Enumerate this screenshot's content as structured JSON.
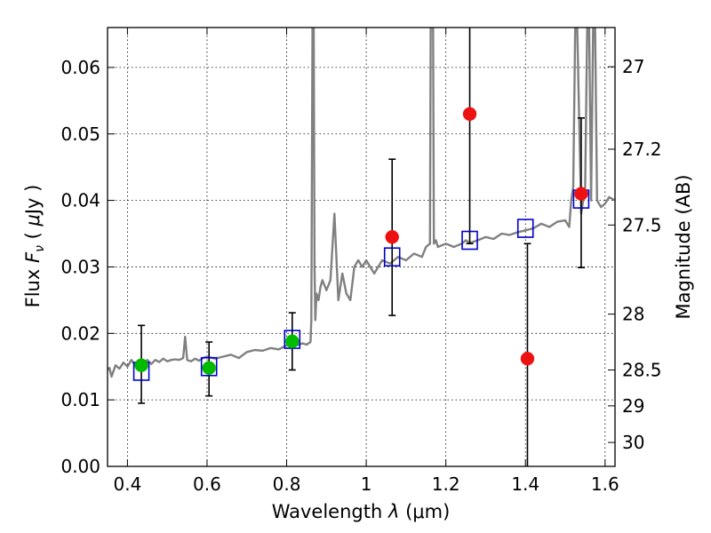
{
  "chart_data": {
    "type": "scatter",
    "xlabel": "Wavelength λ (μm)",
    "ylabel": "Flux F_ν ( μJy )",
    "xlabel_parts": {
      "prefix": "Wavelength",
      "sym": "λ",
      "unit": "(μm)"
    },
    "ylabel_parts": {
      "prefix": "Flux",
      "sym": "F",
      "sub": "ν",
      "unit_open": "(",
      "mu": "μ",
      "unit_rest": "Jy )"
    },
    "y2label": "Magnitude (AB)",
    "xlim": [
      0.35,
      1.625
    ],
    "ylim": [
      0.0,
      0.066
    ],
    "grid": true,
    "x_ticks": [
      {
        "v": 0.4,
        "label": "0.4"
      },
      {
        "v": 0.6,
        "label": "0.6"
      },
      {
        "v": 0.8,
        "label": "0.8"
      },
      {
        "v": 1.0,
        "label": "1"
      },
      {
        "v": 1.2,
        "label": "1.2"
      },
      {
        "v": 1.4,
        "label": "1.4"
      },
      {
        "v": 1.6,
        "label": "1.6"
      }
    ],
    "y_ticks": [
      {
        "v": 0.0,
        "label": "0.00"
      },
      {
        "v": 0.01,
        "label": "0.01"
      },
      {
        "v": 0.02,
        "label": "0.02"
      },
      {
        "v": 0.03,
        "label": "0.03"
      },
      {
        "v": 0.04,
        "label": "0.04"
      },
      {
        "v": 0.05,
        "label": "0.05"
      },
      {
        "v": 0.06,
        "label": "0.06"
      }
    ],
    "mag_ticks": [
      {
        "label": "27",
        "flux": 0.0601
      },
      {
        "label": "27.2",
        "flux": 0.0477
      },
      {
        "label": "27.5",
        "flux": 0.0363
      },
      {
        "label": "28",
        "flux": 0.0229
      },
      {
        "label": "28.5",
        "flux": 0.0145
      },
      {
        "label": "29",
        "flux": 0.0091
      },
      {
        "label": "30",
        "flux": 0.0036
      }
    ],
    "sed_model": {
      "color": "#808080",
      "x": [
        0.35,
        0.355,
        0.36,
        0.37,
        0.38,
        0.39,
        0.4,
        0.41,
        0.42,
        0.43,
        0.44,
        0.45,
        0.46,
        0.47,
        0.48,
        0.49,
        0.5,
        0.51,
        0.52,
        0.53,
        0.54,
        0.545,
        0.55,
        0.56,
        0.57,
        0.58,
        0.59,
        0.6,
        0.62,
        0.64,
        0.66,
        0.68,
        0.7,
        0.72,
        0.74,
        0.76,
        0.78,
        0.8,
        0.82,
        0.84,
        0.85,
        0.86,
        0.862,
        0.865,
        0.868,
        0.87,
        0.872,
        0.875,
        0.88,
        0.885,
        0.89,
        0.9,
        0.91,
        0.92,
        0.93,
        0.94,
        0.95,
        0.96,
        0.97,
        0.98,
        0.99,
        1.0,
        1.02,
        1.04,
        1.06,
        1.08,
        1.1,
        1.12,
        1.14,
        1.15,
        1.16,
        1.162,
        1.165,
        1.168,
        1.17,
        1.175,
        1.18,
        1.2,
        1.22,
        1.24,
        1.25,
        1.26,
        1.28,
        1.3,
        1.32,
        1.34,
        1.36,
        1.38,
        1.4,
        1.42,
        1.44,
        1.46,
        1.48,
        1.5,
        1.51,
        1.515,
        1.52,
        1.525,
        1.53,
        1.54,
        1.55,
        1.555,
        1.56,
        1.565,
        1.57,
        1.575,
        1.58,
        1.59,
        1.6,
        1.61,
        1.625
      ],
      "y": [
        0.0145,
        0.0148,
        0.0135,
        0.0152,
        0.0147,
        0.0156,
        0.015,
        0.016,
        0.0152,
        0.0158,
        0.0155,
        0.016,
        0.0154,
        0.016,
        0.0157,
        0.0162,
        0.0158,
        0.016,
        0.0161,
        0.016,
        0.0163,
        0.0195,
        0.016,
        0.0158,
        0.0162,
        0.0159,
        0.0163,
        0.0165,
        0.0162,
        0.0165,
        0.0168,
        0.0163,
        0.0172,
        0.0175,
        0.0174,
        0.0178,
        0.0176,
        0.0182,
        0.0181,
        0.0185,
        0.0183,
        0.0187,
        0.022,
        0.066,
        0.066,
        0.03,
        0.022,
        0.026,
        0.025,
        0.027,
        0.028,
        0.0265,
        0.028,
        0.038,
        0.025,
        0.029,
        0.026,
        0.025,
        0.03,
        0.031,
        0.03,
        0.031,
        0.029,
        0.031,
        0.0305,
        0.0315,
        0.031,
        0.032,
        0.0315,
        0.033,
        0.0335,
        0.066,
        0.066,
        0.066,
        0.0335,
        0.034,
        0.033,
        0.0335,
        0.033,
        0.0335,
        0.034,
        0.0336,
        0.034,
        0.0345,
        0.0342,
        0.035,
        0.0348,
        0.0352,
        0.0355,
        0.0358,
        0.0365,
        0.036,
        0.0368,
        0.037,
        0.036,
        0.04,
        0.042,
        0.066,
        0.066,
        0.038,
        0.042,
        0.066,
        0.066,
        0.04,
        0.066,
        0.066,
        0.04,
        0.039,
        0.0395,
        0.0405,
        0.04
      ]
    },
    "series": [
      {
        "marker": "circle",
        "color": "#00bb00",
        "points": [
          {
            "x": 0.435,
            "y": 0.0152,
            "err_lo": 0.0095,
            "err_hi": 0.0212
          },
          {
            "x": 0.605,
            "y": 0.0148,
            "err_lo": 0.0106,
            "err_hi": 0.0187
          },
          {
            "x": 0.814,
            "y": 0.0188,
            "err_lo": 0.0145,
            "err_hi": 0.0231
          }
        ]
      },
      {
        "marker": "circle",
        "color": "#ee1111",
        "points": [
          {
            "x": 1.065,
            "y": 0.0345,
            "err_lo": 0.0227,
            "err_hi": 0.0462
          },
          {
            "x": 1.26,
            "y": 0.053,
            "err_lo": 0.0335,
            "err_hi": 0.066
          },
          {
            "x": 1.405,
            "y": 0.0162,
            "err_lo": 0.0,
            "err_hi": 0.0335
          },
          {
            "x": 1.54,
            "y": 0.041,
            "err_lo": 0.0299,
            "err_hi": 0.0524
          }
        ]
      },
      {
        "marker": "square",
        "color": "#0000cc",
        "points": [
          {
            "x": 0.435,
            "y": 0.0143
          },
          {
            "x": 0.605,
            "y": 0.015
          },
          {
            "x": 0.814,
            "y": 0.0191
          },
          {
            "x": 1.065,
            "y": 0.0315
          },
          {
            "x": 1.26,
            "y": 0.034
          },
          {
            "x": 1.4,
            "y": 0.0358
          },
          {
            "x": 1.54,
            "y": 0.0402
          }
        ]
      }
    ]
  }
}
